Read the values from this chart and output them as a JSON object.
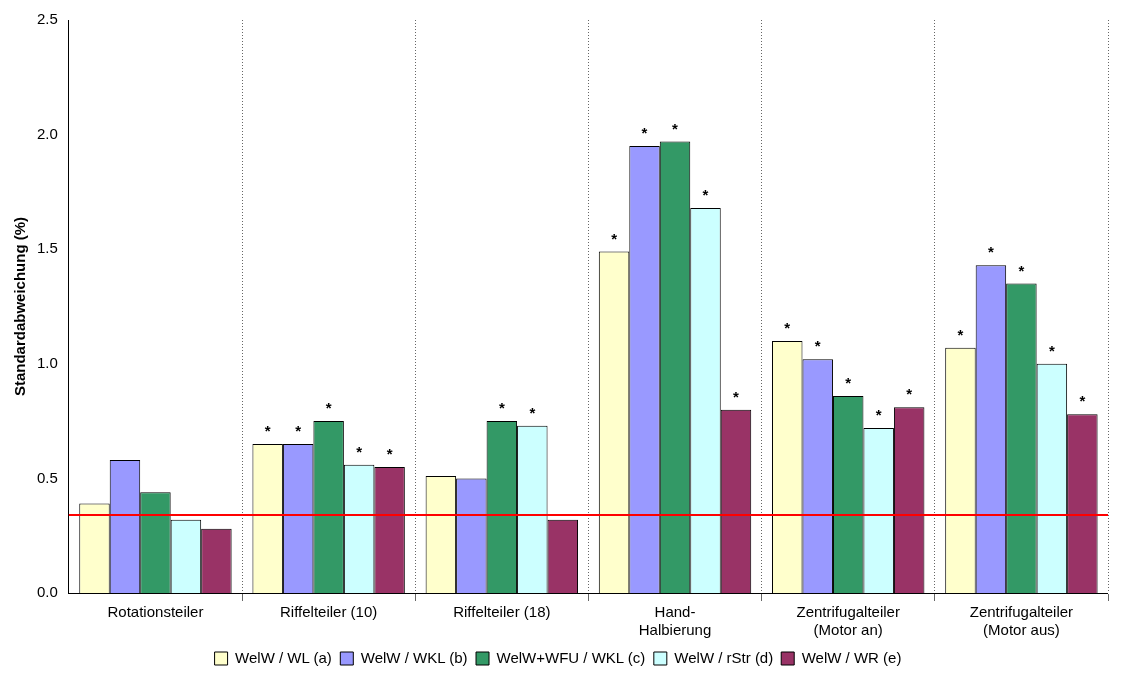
{
  "chart_data": {
    "type": "bar",
    "ylabel": "Standardabweichung (%)",
    "categories": [
      "Rotationsteiler",
      "Riffelteiler (10)",
      "Riffelteiler (18)",
      "Hand-\nHalbierung",
      "Zentrifugalteiler\n(Motor an)",
      "Zentrifugalteiler\n(Motor aus)"
    ],
    "series": [
      {
        "name": "WelW / WL (a)",
        "color": "#ffffcc",
        "values": [
          0.39,
          0.65,
          0.51,
          1.49,
          1.1,
          1.07
        ],
        "value_labels": [
          null,
          "*",
          null,
          "*",
          "*",
          "*"
        ]
      },
      {
        "name": "WelW / WKL (b)",
        "color": "#9999ff",
        "values": [
          0.58,
          0.65,
          0.5,
          1.95,
          1.02,
          1.43
        ],
        "value_labels": [
          null,
          "*",
          null,
          "*",
          "*",
          "*"
        ]
      },
      {
        "name": "WelW+WFU / WKL (c)",
        "color": "#339966",
        "values": [
          0.44,
          0.75,
          0.75,
          1.97,
          0.86,
          1.35
        ],
        "value_labels": [
          null,
          "*",
          "*",
          "*",
          "*",
          "*"
        ]
      },
      {
        "name": "WelW / rStr (d)",
        "color": "#ccffff",
        "values": [
          0.32,
          0.56,
          0.73,
          1.68,
          0.72,
          1.0
        ],
        "value_labels": [
          null,
          "*",
          "*",
          "*",
          "*",
          "*"
        ]
      },
      {
        "name": "WelW / WR (e)",
        "color": "#993366",
        "values": [
          0.28,
          0.55,
          0.32,
          0.8,
          0.81,
          0.78
        ],
        "value_labels": [
          null,
          "*",
          null,
          "*",
          "*",
          "*"
        ]
      }
    ],
    "ylim": [
      0,
      2.5
    ],
    "yticks": [
      {
        "value": 0,
        "label": "0.0"
      },
      {
        "value": 0.5,
        "label": "0.5"
      },
      {
        "value": 1,
        "label": "1.0"
      },
      {
        "value": 1.5,
        "label": "1.5"
      },
      {
        "value": 2,
        "label": "2.0"
      },
      {
        "value": 2.5,
        "label": "2.5"
      }
    ],
    "grid": "x",
    "legend": "bottom",
    "ref_lines": [
      {
        "axis": "y",
        "value": 0.34,
        "color": "#ff0000"
      }
    ]
  }
}
